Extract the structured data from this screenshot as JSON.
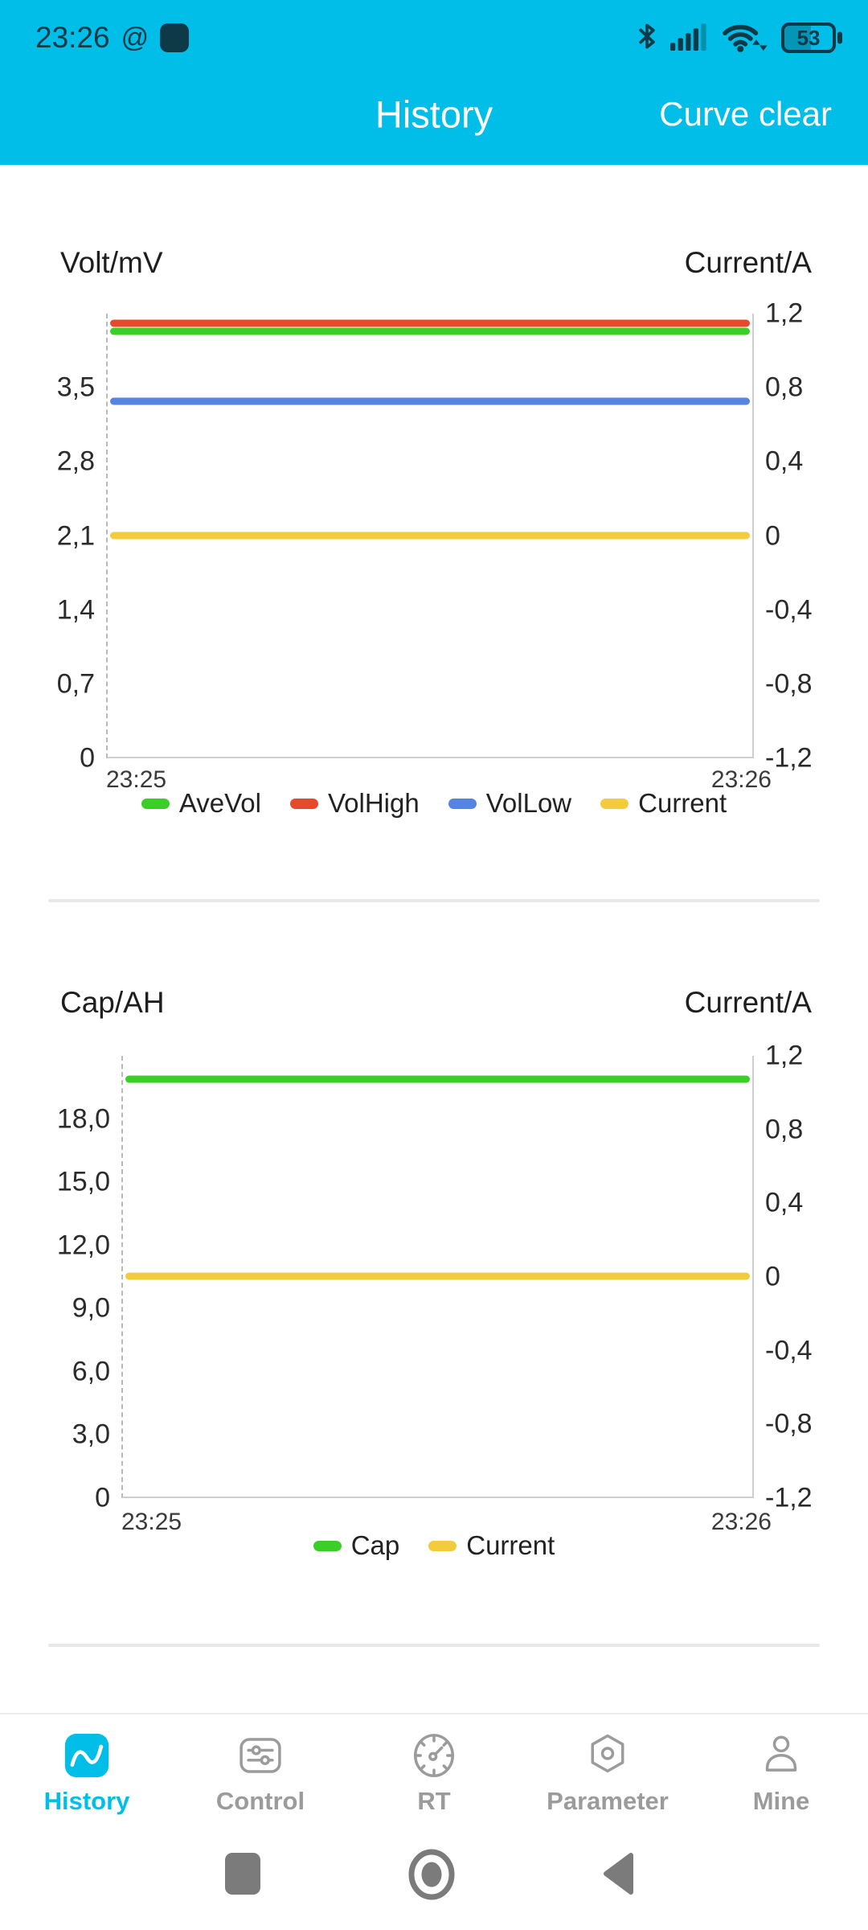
{
  "colors": {
    "accent": "#00BEE8",
    "status_content": "#0E3946",
    "nav_inactive": "#9B9B9B",
    "android_nav": "#7B7B7B",
    "axis_line": "#CFCFCF",
    "divider": "#E8E8E8",
    "text": "#212121"
  },
  "status_bar": {
    "time": "23:26",
    "at_symbol": "@",
    "battery_percent": "53",
    "icons": [
      "bluetooth-icon",
      "signal-icon",
      "wifi-icon",
      "battery-icon"
    ]
  },
  "header": {
    "title": "History",
    "action": "Curve clear"
  },
  "chart_data": [
    {
      "type": "line",
      "x": [
        "23:25",
        "23:26"
      ],
      "left_axis": {
        "label": "Volt/mV",
        "range": [
          0,
          4.2
        ],
        "ticks": [
          "3,5",
          "2,8",
          "2,1",
          "1,4",
          "0,7",
          "0"
        ]
      },
      "right_axis": {
        "label": "Current/A",
        "range": [
          -1.2,
          1.2
        ],
        "ticks": [
          "1,2",
          "0,8",
          "0,4",
          "0",
          "-0,4",
          "-0,8",
          "-1,2"
        ]
      },
      "series": [
        {
          "name": "AveVol",
          "color": "#3BCE27",
          "axis": "left",
          "values": [
            4.03,
            4.03
          ]
        },
        {
          "name": "VolHigh",
          "color": "#E6492B",
          "axis": "left",
          "values": [
            4.11,
            4.11
          ]
        },
        {
          "name": "VolLow",
          "color": "#5585E0",
          "axis": "left",
          "values": [
            3.37,
            3.37
          ]
        },
        {
          "name": "Current",
          "color": "#F2CC3C",
          "axis": "right",
          "values": [
            0,
            0
          ]
        }
      ],
      "legend_position": "bottom",
      "grid": false
    },
    {
      "type": "line",
      "x": [
        "23:25",
        "23:26"
      ],
      "left_axis": {
        "label": "Cap/AH",
        "range": [
          0,
          21
        ],
        "ticks": [
          "18,0",
          "15,0",
          "12,0",
          "9,0",
          "6,0",
          "3,0",
          "0"
        ]
      },
      "right_axis": {
        "label": "Current/A",
        "range": [
          -1.2,
          1.2
        ],
        "ticks": [
          "1,2",
          "0,8",
          "0,4",
          "0",
          "-0,4",
          "-0,8",
          "-1,2"
        ]
      },
      "series": [
        {
          "name": "Cap",
          "color": "#3BCE27",
          "axis": "left",
          "values": [
            19.9,
            19.9
          ]
        },
        {
          "name": "Current",
          "color": "#F2CC3C",
          "axis": "right",
          "values": [
            0,
            0
          ]
        }
      ],
      "legend_position": "bottom",
      "grid": false
    }
  ],
  "nav": {
    "items": [
      {
        "label": "History",
        "active": true
      },
      {
        "label": "Control",
        "active": false
      },
      {
        "label": "RT",
        "active": false
      },
      {
        "label": "Parameter",
        "active": false
      },
      {
        "label": "Mine",
        "active": false
      }
    ]
  },
  "android_nav": {
    "buttons": [
      "recents",
      "home",
      "back"
    ]
  }
}
